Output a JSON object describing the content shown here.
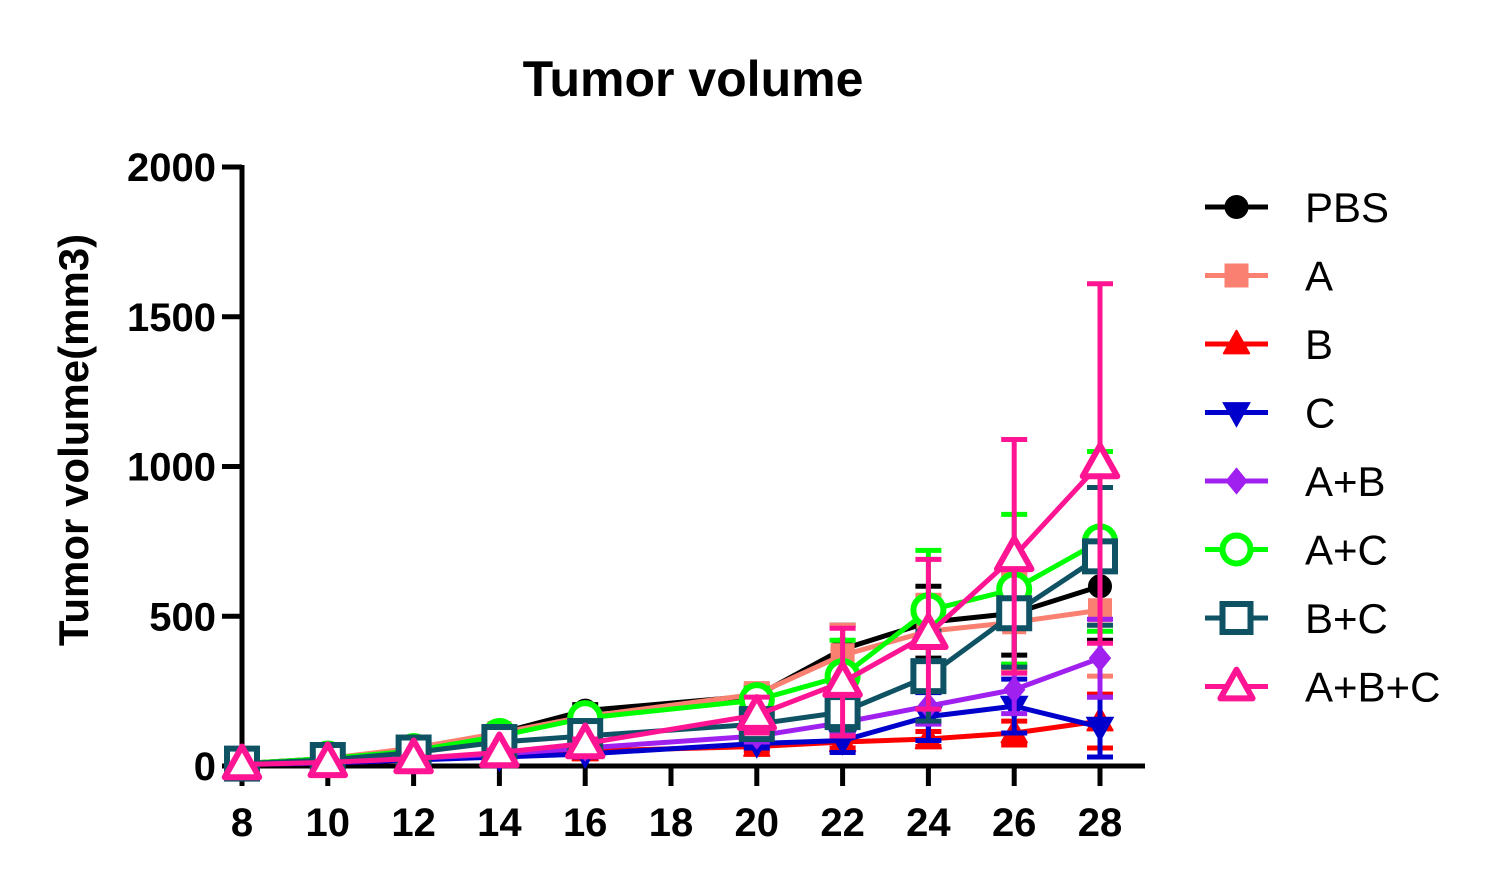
{
  "chart_data": {
    "type": "line",
    "title": "Tumor volume",
    "xlabel": "",
    "ylabel": "Tumor volume(mm3)",
    "xlim": [
      8,
      28
    ],
    "ylim": [
      0,
      2000
    ],
    "x_ticks": [
      8,
      10,
      12,
      14,
      16,
      18,
      20,
      22,
      24,
      26,
      28
    ],
    "x_tick_labels": [
      "8",
      "10",
      "12",
      "14",
      "16",
      "18",
      "20",
      "22",
      "24",
      "26",
      "28"
    ],
    "y_ticks": [
      0,
      500,
      1000,
      1500,
      2000
    ],
    "y_tick_labels": [
      "0",
      "500",
      "1000",
      "1500",
      "2000"
    ],
    "x": [
      8,
      10,
      12,
      14,
      16,
      20,
      22,
      24,
      26,
      28
    ],
    "grid": false,
    "legend_position": "right",
    "series": [
      {
        "name": "PBS",
        "color": "#000000",
        "marker": "circle-filled",
        "values": [
          8,
          25,
          55,
          110,
          185,
          235,
          390,
          480,
          510,
          600
        ],
        "errors": [
          3,
          5,
          10,
          15,
          20,
          30,
          80,
          120,
          140,
          180
        ]
      },
      {
        "name": "A",
        "color": "#FA8072",
        "marker": "square-filled",
        "values": [
          8,
          25,
          60,
          110,
          165,
          240,
          370,
          450,
          480,
          520
        ],
        "errors": [
          3,
          5,
          10,
          15,
          20,
          35,
          100,
          120,
          160,
          220
        ]
      },
      {
        "name": "B",
        "color": "#FF0000",
        "marker": "triangle-up-filled",
        "values": [
          5,
          10,
          20,
          35,
          50,
          65,
          80,
          90,
          110,
          150
        ],
        "errors": [
          2,
          3,
          5,
          8,
          10,
          15,
          20,
          25,
          40,
          90
        ]
      },
      {
        "name": "C",
        "color": "#0000CC",
        "marker": "triangle-down-filled",
        "values": [
          5,
          10,
          20,
          30,
          40,
          75,
          85,
          165,
          200,
          130
        ],
        "errors": [
          2,
          3,
          5,
          8,
          10,
          15,
          40,
          80,
          90,
          100
        ]
      },
      {
        "name": "A+B",
        "color": "#A020F0",
        "marker": "diamond-filled",
        "values": [
          5,
          15,
          25,
          40,
          60,
          100,
          145,
          200,
          255,
          360
        ],
        "errors": [
          2,
          3,
          5,
          8,
          10,
          20,
          40,
          60,
          80,
          130
        ]
      },
      {
        "name": "A+C",
        "color": "#00FF00",
        "marker": "circle-open",
        "values": [
          8,
          25,
          50,
          100,
          160,
          220,
          300,
          520,
          590,
          750
        ],
        "errors": [
          3,
          5,
          10,
          15,
          20,
          40,
          120,
          200,
          250,
          300
        ]
      },
      {
        "name": "B+C",
        "color": "#0E5264",
        "marker": "square-open",
        "values": [
          8,
          20,
          45,
          80,
          100,
          140,
          180,
          300,
          510,
          700
        ],
        "errors": [
          3,
          5,
          10,
          15,
          20,
          30,
          60,
          150,
          180,
          230
        ]
      },
      {
        "name": "A+B+C",
        "color": "#FF1493",
        "marker": "triangle-up-open",
        "values": [
          5,
          12,
          25,
          45,
          75,
          170,
          280,
          440,
          700,
          1010
        ],
        "errors": [
          2,
          3,
          5,
          8,
          15,
          60,
          180,
          250,
          390,
          600
        ]
      }
    ]
  }
}
